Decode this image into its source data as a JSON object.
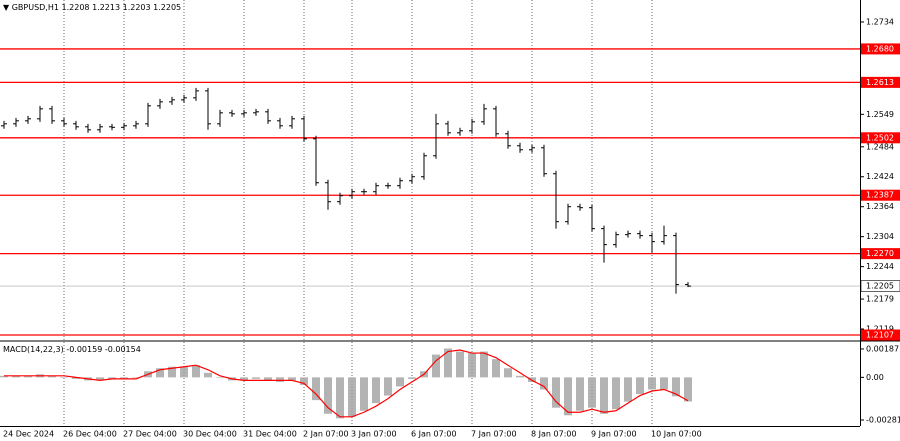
{
  "chart_data": [
    {
      "type": "ohlc",
      "title": "GBPUSD,H1",
      "color": "#000000",
      "categories": [
        "24 Dec 2024",
        null,
        null,
        null,
        null,
        "26 Dec 04:00",
        null,
        null,
        null,
        null,
        "27 Dec 04:00",
        null,
        null,
        null,
        null,
        "30 Dec 04:00",
        null,
        null,
        null,
        null,
        "31 Dec 04:00",
        null,
        null,
        null,
        null,
        "2 Jan 07:00",
        null,
        null,
        null,
        "3 Jan 07:00",
        null,
        null,
        null,
        null,
        "6 Jan 07:00",
        null,
        null,
        null,
        null,
        "7 Jan 07:00",
        null,
        null,
        null,
        null,
        "8 Jan 07:00",
        null,
        null,
        null,
        null,
        "9 Jan 07:00",
        null,
        null,
        null,
        null,
        "10 Jan 07:00",
        null,
        null,
        null
      ],
      "open": [
        1.2526,
        1.253,
        1.2536,
        1.254,
        1.256,
        1.2536,
        1.253,
        1.2524,
        1.2518,
        1.2524,
        1.2523,
        1.2526,
        1.253,
        1.2566,
        1.2574,
        1.2578,
        1.2582,
        1.2596,
        1.253,
        1.2552,
        1.255,
        1.2552,
        1.2554,
        1.2536,
        1.2526,
        1.254,
        1.25,
        1.2412,
        1.2374,
        1.2386,
        1.2394,
        1.2394,
        1.2406,
        1.2406,
        1.2416,
        1.2424,
        1.2466,
        1.253,
        1.2512,
        1.2516,
        1.2534,
        1.256,
        1.251,
        1.2486,
        1.2478,
        1.2482,
        1.243,
        1.2334,
        1.2364,
        1.2362,
        1.232,
        1.2288,
        1.2308,
        1.231,
        1.2306,
        1.2294,
        1.2306,
        1.2208
      ],
      "high": [
        1.2536,
        1.2542,
        1.2546,
        1.2566,
        1.2566,
        1.2542,
        1.2536,
        1.253,
        1.253,
        1.253,
        1.2532,
        1.2536,
        1.2572,
        1.258,
        1.2584,
        1.2588,
        1.2602,
        1.2602,
        1.2558,
        1.2558,
        1.2558,
        1.256,
        1.256,
        1.2542,
        1.2546,
        1.2546,
        1.2506,
        1.2418,
        1.2392,
        1.24,
        1.24,
        1.2412,
        1.2412,
        1.2422,
        1.243,
        1.2472,
        1.255,
        1.2536,
        1.2522,
        1.254,
        1.257,
        1.2566,
        1.2516,
        1.2492,
        1.2488,
        1.2488,
        1.2436,
        1.237,
        1.237,
        1.2368,
        1.2326,
        1.2314,
        1.2316,
        1.2316,
        1.2312,
        1.2326,
        1.2312,
        1.2213
      ],
      "low": [
        1.252,
        1.2524,
        1.253,
        1.2534,
        1.253,
        1.2524,
        1.2518,
        1.2512,
        1.2512,
        1.2517,
        1.2517,
        1.252,
        1.2524,
        1.256,
        1.2568,
        1.2572,
        1.2576,
        1.2518,
        1.2524,
        1.2544,
        1.2544,
        1.2546,
        1.253,
        1.252,
        1.252,
        1.2494,
        1.2406,
        1.2358,
        1.2368,
        1.238,
        1.2388,
        1.2388,
        1.24,
        1.24,
        1.241,
        1.2418,
        1.246,
        1.2506,
        1.2506,
        1.251,
        1.2528,
        1.2504,
        1.248,
        1.2472,
        1.2472,
        1.2424,
        1.232,
        1.2328,
        1.2356,
        1.2314,
        1.2252,
        1.2282,
        1.2302,
        1.23,
        1.2272,
        1.2288,
        1.219,
        1.2203
      ],
      "close": [
        1.253,
        1.2536,
        1.254,
        1.256,
        1.2536,
        1.253,
        1.2524,
        1.2518,
        1.2524,
        1.2523,
        1.2526,
        1.253,
        1.2566,
        1.2574,
        1.2578,
        1.2582,
        1.2596,
        1.253,
        1.2552,
        1.255,
        1.2552,
        1.2554,
        1.2536,
        1.2526,
        1.254,
        1.25,
        1.2412,
        1.2374,
        1.2386,
        1.2394,
        1.2394,
        1.2406,
        1.2406,
        1.2416,
        1.2424,
        1.2466,
        1.253,
        1.2512,
        1.2516,
        1.2534,
        1.256,
        1.251,
        1.2486,
        1.2478,
        1.2482,
        1.243,
        1.2334,
        1.2364,
        1.2362,
        1.232,
        1.2288,
        1.2308,
        1.231,
        1.2306,
        1.2294,
        1.2306,
        1.2208,
        1.2205
      ],
      "ylim": [
        1.2097,
        1.2778
      ],
      "yticks": [
        1.2734,
        1.2549,
        1.2484,
        1.2424,
        1.2364,
        1.2304,
        1.2244,
        1.2179,
        1.2119
      ],
      "levels": [
        {
          "value": 1.268,
          "label": "1.2680"
        },
        1.2613,
        1.2502,
        1.2387,
        {
          "value": 1.227,
          "label": "1.2270"
        },
        1.2107
      ],
      "level_color": "#ff0000",
      "grid": true
    },
    {
      "type": "macd",
      "title": "MACD(14,22,3)",
      "histogram": [
        0.0001,
        0.0001,
        0.0001,
        0.0002,
        0.0001,
        0.0,
        -0.0001,
        -0.0002,
        -0.0002,
        -0.0001,
        -0.0001,
        0.0,
        0.0004,
        0.0006,
        0.0007,
        0.0007,
        0.0008,
        0.0003,
        0.0,
        -0.0002,
        -0.0002,
        -0.0001,
        -0.0002,
        -0.0003,
        -0.0002,
        -0.0005,
        -0.0015,
        -0.0024,
        -0.0027,
        -0.0026,
        -0.0022,
        -0.0017,
        -0.0012,
        -0.0006,
        -0.0001,
        0.0004,
        0.0015,
        0.0019,
        0.0017,
        0.0016,
        0.0017,
        0.0012,
        0.0006,
        0.0001,
        -0.0003,
        -0.0008,
        -0.002,
        -0.0025,
        -0.0022,
        -0.002,
        -0.0024,
        -0.0021,
        -0.0016,
        -0.0011,
        -0.0008,
        -0.0008,
        -0.00125,
        -0.00159
      ],
      "signal": [
        0.0001,
        0.0001,
        0.0001,
        0.0001,
        0.0001,
        0.0001,
        0.0,
        -0.0001,
        -0.0002,
        -0.0001,
        -0.0001,
        -0.0001,
        0.0002,
        0.0005,
        0.0006,
        0.0007,
        0.0008,
        0.0005,
        0.0001,
        -0.0001,
        -0.0002,
        -0.0002,
        -0.0002,
        -0.0002,
        -0.0002,
        -0.0004,
        -0.0011,
        -0.002,
        -0.0026,
        -0.0026,
        -0.0023,
        -0.0019,
        -0.0014,
        -0.0008,
        -0.0003,
        0.0002,
        0.0011,
        0.0017,
        0.0018,
        0.0016,
        0.0016,
        0.0013,
        0.0008,
        0.0003,
        -0.0002,
        -0.0006,
        -0.0016,
        -0.0023,
        -0.0023,
        -0.0021,
        -0.0023,
        -0.0022,
        -0.0017,
        -0.0012,
        -0.0009,
        -0.0008,
        -0.0011,
        -0.00154
      ],
      "histogram_color": "#a0a0a0",
      "signal_color": "#ff0000",
      "ylim": [
        -0.00314,
        0.00233
      ],
      "yticks": [
        0.00187,
        {
          "value": 0,
          "label": "0.00"
        },
        -0.00281
      ]
    }
  ]
}
